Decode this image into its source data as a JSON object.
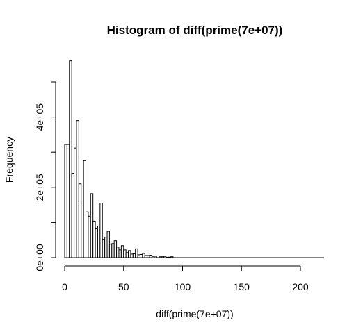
{
  "chart_data": {
    "type": "bar",
    "title": "Histogram of diff(prime(7e+07))",
    "xlabel": "diff(prime(7e+07))",
    "ylabel": "Frequency",
    "xlim": [
      0,
      220
    ],
    "ylim": [
      0,
      500000
    ],
    "x_ticks": [
      0,
      50,
      100,
      150,
      200
    ],
    "x_tick_labels": [
      "0",
      "50",
      "100",
      "150",
      "200"
    ],
    "y_ticks": [
      0,
      100000,
      200000,
      300000,
      400000,
      500000
    ],
    "y_tick_labels": [
      "0e+00",
      "",
      "2e+05",
      "",
      "4e+05",
      ""
    ],
    "bin_width": 2,
    "bins_start": 0,
    "values": [
      322000,
      322000,
      560000,
      240000,
      312000,
      390000,
      210000,
      155000,
      276000,
      130000,
      118000,
      182000,
      104000,
      82000,
      90000,
      155000,
      52000,
      58000,
      75000,
      38000,
      40000,
      48000,
      30000,
      22000,
      34000,
      22000,
      14000,
      20000,
      10000,
      11000,
      25000,
      8000,
      9000,
      12000,
      6000,
      6000,
      7000,
      3500,
      4000,
      5000,
      2500,
      2500,
      3500,
      1200,
      1500,
      2500
    ],
    "grid": false,
    "legend": "none"
  }
}
